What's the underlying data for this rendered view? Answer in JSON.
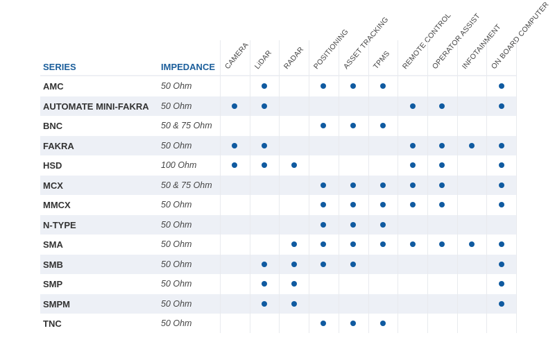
{
  "headers": {
    "series": "SERIES",
    "impedance": "IMPEDANCE"
  },
  "columns": [
    "CAMERA",
    "LiDAR",
    "RADAR",
    "POSITIONING",
    "ASSET TRACKING",
    "TPMS",
    "REMOTE CONTROL",
    "OPERATOR ASSIST",
    "INFOTAINMENT",
    "ON BOARD COMPUTER"
  ],
  "colors": {
    "header": "#1b5e9b",
    "dot": "#0f5aa0",
    "stripe": "#edf0f6"
  },
  "rows": [
    {
      "series": "AMC",
      "impedance": "50 Ohm",
      "flags": [
        0,
        1,
        0,
        1,
        1,
        1,
        0,
        0,
        0,
        1
      ]
    },
    {
      "series": "AUTOMATE MINI-FAKRA",
      "impedance": "50 Ohm",
      "flags": [
        1,
        1,
        0,
        0,
        0,
        0,
        1,
        1,
        0,
        1
      ]
    },
    {
      "series": "BNC",
      "impedance": "50 & 75 Ohm",
      "flags": [
        0,
        0,
        0,
        1,
        1,
        1,
        0,
        0,
        0,
        0
      ]
    },
    {
      "series": "FAKRA",
      "impedance": "50 Ohm",
      "flags": [
        1,
        1,
        0,
        0,
        0,
        0,
        1,
        1,
        1,
        1
      ]
    },
    {
      "series": "HSD",
      "impedance": "100 Ohm",
      "flags": [
        1,
        1,
        1,
        0,
        0,
        0,
        1,
        1,
        0,
        1
      ]
    },
    {
      "series": "MCX",
      "impedance": "50 & 75 Ohm",
      "flags": [
        0,
        0,
        0,
        1,
        1,
        1,
        1,
        1,
        0,
        1
      ]
    },
    {
      "series": "MMCX",
      "impedance": "50 Ohm",
      "flags": [
        0,
        0,
        0,
        1,
        1,
        1,
        1,
        1,
        0,
        1
      ]
    },
    {
      "series": "N-TYPE",
      "impedance": "50 Ohm",
      "flags": [
        0,
        0,
        0,
        1,
        1,
        1,
        0,
        0,
        0,
        0
      ]
    },
    {
      "series": "SMA",
      "impedance": "50 Ohm",
      "flags": [
        0,
        0,
        1,
        1,
        1,
        1,
        1,
        1,
        1,
        1
      ]
    },
    {
      "series": "SMB",
      "impedance": "50 Ohm",
      "flags": [
        0,
        1,
        1,
        1,
        1,
        0,
        0,
        0,
        0,
        1
      ]
    },
    {
      "series": "SMP",
      "impedance": "50 Ohm",
      "flags": [
        0,
        1,
        1,
        0,
        0,
        0,
        0,
        0,
        0,
        1
      ]
    },
    {
      "series": "SMPM",
      "impedance": "50 Ohm",
      "flags": [
        0,
        1,
        1,
        0,
        0,
        0,
        0,
        0,
        0,
        1
      ]
    },
    {
      "series": "TNC",
      "impedance": "50 Ohm",
      "flags": [
        0,
        0,
        0,
        1,
        1,
        1,
        0,
        0,
        0,
        0
      ]
    }
  ]
}
